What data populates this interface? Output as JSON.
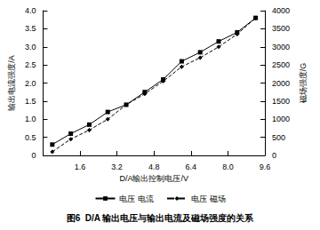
{
  "chart_data": {
    "type": "line",
    "title": "图6  D/A 输出电压与输出电流及磁场强度的关系",
    "x_label": "D/A输出控制电压/V",
    "y_label": "输出电流强度/A",
    "y2_label": "磁场强度/G",
    "x": [
      0.4,
      1.2,
      2.0,
      2.8,
      3.6,
      4.4,
      5.2,
      6.0,
      6.8,
      7.6,
      8.4,
      9.2
    ],
    "series": [
      {
        "name": "电压 电流",
        "color": "#000000",
        "marker": "square",
        "line_style": "solid",
        "values": [
          0.3,
          0.6,
          0.85,
          1.2,
          1.4,
          1.75,
          2.1,
          2.6,
          2.85,
          3.15,
          3.4,
          3.8
        ]
      },
      {
        "name": "电压 磁场",
        "color": "#000000",
        "marker": "diamond",
        "line_style": "dashed",
        "axis": "y2",
        "values": [
          100,
          450,
          700,
          1000,
          1400,
          1700,
          2050,
          2450,
          2700,
          3000,
          3350,
          3800
        ]
      }
    ],
    "xlim": [
      0,
      9.6
    ],
    "xticks": [
      1.6,
      3.2,
      4.8,
      6.4,
      {
        "value": 8.0,
        "label": "8.0"
      },
      9.6
    ],
    "ylim": [
      0,
      4
    ],
    "yticks": [
      0,
      0.5,
      {
        "value": 1,
        "label": "1.0"
      },
      1.5,
      {
        "value": 2,
        "label": "2.0"
      },
      2.5,
      {
        "value": 3,
        "label": "3.0"
      },
      3.5,
      {
        "value": 4,
        "label": "4.0"
      }
    ],
    "y2lim": [
      0,
      4000
    ],
    "y2ticks": [
      0,
      500,
      1000,
      1500,
      2000,
      2500,
      3000,
      3500,
      4000
    ],
    "grid": false,
    "legend": "bottom"
  }
}
